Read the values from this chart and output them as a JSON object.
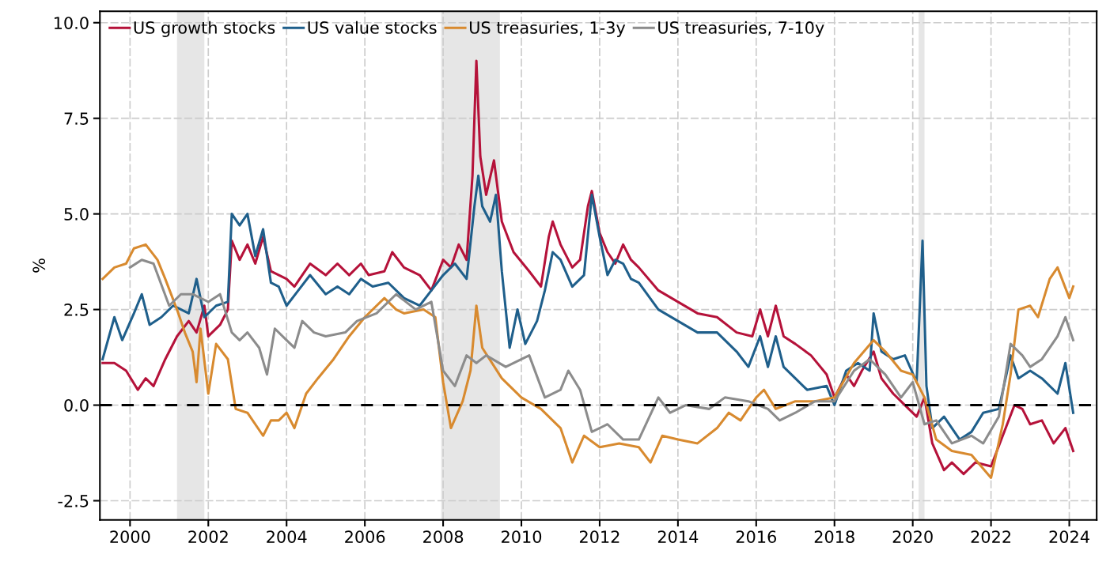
{
  "chart_data": {
    "type": "line",
    "ylabel": "%",
    "xlim": [
      1999.23,
      2024.7
    ],
    "ylim": [
      -3.0,
      10.3
    ],
    "xticks": [
      2000,
      2002,
      2004,
      2006,
      2008,
      2010,
      2012,
      2014,
      2016,
      2018,
      2020,
      2022,
      2024
    ],
    "yticks": [
      {
        "value": -2.5,
        "label": "-2.5"
      },
      {
        "value": 0,
        "label": "0.0"
      },
      {
        "value": 2.5,
        "label": "2.5"
      },
      {
        "value": 5,
        "label": "5.0"
      },
      {
        "value": 7.5,
        "label": "7.5"
      },
      {
        "value": 10,
        "label": "10.0"
      }
    ],
    "grid": true,
    "legend": "top left",
    "line_style": "solid",
    "marker": "none",
    "bands": [
      {
        "axis": "x",
        "from": 2001.2,
        "to": 2001.9,
        "color": "#e6e6e6"
      },
      {
        "axis": "x",
        "from": 2007.95,
        "to": 2009.45,
        "color": "#e6e6e6"
      },
      {
        "axis": "x",
        "from": 2020.15,
        "to": 2020.3,
        "color": "#e6e6e6"
      }
    ],
    "ref_lines": [
      {
        "axis": "y",
        "value": 0,
        "color": "#000000",
        "line_style": "dashed"
      }
    ],
    "series": [
      {
        "name": "US growth stocks",
        "color": "#b5123a",
        "x": [
          1999.3,
          1999.6,
          1999.9,
          2000.2,
          2000.4,
          2000.6,
          2000.9,
          2001.2,
          2001.5,
          2001.7,
          2001.9,
          2002.0,
          2002.3,
          2002.5,
          2002.6,
          2002.8,
          2003.0,
          2003.2,
          2003.4,
          2003.6,
          2004.0,
          2004.2,
          2004.6,
          2005.0,
          2005.3,
          2005.6,
          2005.9,
          2006.1,
          2006.5,
          2006.7,
          2007.0,
          2007.4,
          2007.7,
          2008.0,
          2008.2,
          2008.4,
          2008.6,
          2008.75,
          2008.85,
          2008.95,
          2009.1,
          2009.3,
          2009.5,
          2009.8,
          2010.2,
          2010.5,
          2010.7,
          2010.8,
          2011.0,
          2011.3,
          2011.5,
          2011.7,
          2011.8,
          2012.0,
          2012.2,
          2012.4,
          2012.6,
          2012.8,
          2013.0,
          2013.5,
          2014.0,
          2014.5,
          2015.0,
          2015.5,
          2015.9,
          2016.1,
          2016.3,
          2016.5,
          2016.7,
          2017.0,
          2017.4,
          2017.8,
          2018.0,
          2018.3,
          2018.5,
          2018.7,
          2019.0,
          2019.2,
          2019.5,
          2019.8,
          2020.1,
          2020.3,
          2020.5,
          2020.8,
          2021.0,
          2021.3,
          2021.6,
          2022.0,
          2022.3,
          2022.6,
          2022.8,
          2023.0,
          2023.3,
          2023.6,
          2023.9,
          2024.1
        ],
        "values": [
          1.1,
          1.1,
          0.9,
          0.4,
          0.7,
          0.5,
          1.2,
          1.8,
          2.2,
          1.9,
          2.6,
          1.8,
          2.1,
          2.5,
          4.3,
          3.8,
          4.2,
          3.7,
          4.4,
          3.5,
          3.3,
          3.1,
          3.7,
          3.4,
          3.7,
          3.4,
          3.7,
          3.4,
          3.5,
          4.0,
          3.6,
          3.4,
          3.0,
          3.8,
          3.6,
          4.2,
          3.8,
          6.0,
          9.0,
          6.5,
          5.5,
          6.4,
          4.8,
          4.0,
          3.5,
          3.1,
          4.4,
          4.8,
          4.2,
          3.6,
          3.8,
          5.2,
          5.6,
          4.5,
          4.0,
          3.7,
          4.2,
          3.8,
          3.6,
          3.0,
          2.7,
          2.4,
          2.3,
          1.9,
          1.8,
          2.5,
          1.8,
          2.6,
          1.8,
          1.6,
          1.3,
          0.8,
          0.2,
          0.8,
          0.5,
          0.9,
          1.4,
          0.7,
          0.3,
          0.0,
          -0.3,
          0.2,
          -1.0,
          -1.7,
          -1.5,
          -1.8,
          -1.5,
          -1.6,
          -0.8,
          0.0,
          -0.1,
          -0.5,
          -0.4,
          -1.0,
          -0.6,
          -1.2
        ]
      },
      {
        "name": "US value stocks",
        "color": "#1f5f8b",
        "x": [
          1999.3,
          1999.6,
          1999.8,
          2000.1,
          2000.3,
          2000.5,
          2000.8,
          2001.1,
          2001.5,
          2001.7,
          2001.9,
          2002.2,
          2002.5,
          2002.6,
          2002.8,
          2003.0,
          2003.2,
          2003.4,
          2003.6,
          2003.8,
          2004.0,
          2004.3,
          2004.6,
          2005.0,
          2005.3,
          2005.6,
          2005.9,
          2006.2,
          2006.6,
          2007.0,
          2007.4,
          2007.7,
          2008.0,
          2008.3,
          2008.6,
          2008.8,
          2008.9,
          2009.0,
          2009.2,
          2009.35,
          2009.5,
          2009.7,
          2009.9,
          2010.1,
          2010.4,
          2010.6,
          2010.8,
          2011.0,
          2011.3,
          2011.6,
          2011.8,
          2012.0,
          2012.2,
          2012.4,
          2012.6,
          2012.8,
          2013.0,
          2013.5,
          2014.0,
          2014.5,
          2015.0,
          2015.5,
          2015.8,
          2016.1,
          2016.3,
          2016.5,
          2016.7,
          2017.0,
          2017.3,
          2017.8,
          2018.0,
          2018.3,
          2018.6,
          2018.9,
          2019.0,
          2019.2,
          2019.5,
          2019.8,
          2020.1,
          2020.25,
          2020.35,
          2020.5,
          2020.8,
          2021.2,
          2021.5,
          2021.8,
          2022.2,
          2022.5,
          2022.7,
          2023.0,
          2023.3,
          2023.7,
          2023.9,
          2024.1
        ],
        "values": [
          1.2,
          2.3,
          1.7,
          2.4,
          2.9,
          2.1,
          2.3,
          2.6,
          2.4,
          3.3,
          2.3,
          2.6,
          2.7,
          5.0,
          4.7,
          5.0,
          3.9,
          4.6,
          3.2,
          3.1,
          2.6,
          3.0,
          3.4,
          2.9,
          3.1,
          2.9,
          3.3,
          3.1,
          3.2,
          2.8,
          2.6,
          3.0,
          3.4,
          3.7,
          3.3,
          5.2,
          6.0,
          5.2,
          4.8,
          5.5,
          3.5,
          1.5,
          2.5,
          1.6,
          2.2,
          3.0,
          4.0,
          3.8,
          3.1,
          3.4,
          5.5,
          4.4,
          3.4,
          3.8,
          3.7,
          3.3,
          3.2,
          2.5,
          2.2,
          1.9,
          1.9,
          1.4,
          1.0,
          1.8,
          1.0,
          1.8,
          1.0,
          0.7,
          0.4,
          0.5,
          0.0,
          0.9,
          1.1,
          0.9,
          2.4,
          1.4,
          1.2,
          1.3,
          0.6,
          4.3,
          0.5,
          -0.6,
          -0.3,
          -0.9,
          -0.7,
          -0.2,
          -0.1,
          1.3,
          0.7,
          0.9,
          0.7,
          0.3,
          1.1,
          -0.2
        ]
      },
      {
        "name": "US treasuries, 1-3y",
        "color": "#d88a2f",
        "x": [
          1999.3,
          1999.6,
          1999.9,
          2000.1,
          2000.4,
          2000.7,
          2000.9,
          2001.2,
          2001.4,
          2001.6,
          2001.7,
          2001.8,
          2002.0,
          2002.2,
          2002.5,
          2002.7,
          2003.0,
          2003.4,
          2003.6,
          2003.8,
          2004.0,
          2004.2,
          2004.5,
          2004.8,
          2005.2,
          2005.6,
          2006.0,
          2006.5,
          2006.8,
          2007.0,
          2007.5,
          2007.8,
          2008.0,
          2008.2,
          2008.5,
          2008.7,
          2008.85,
          2009.0,
          2009.5,
          2010.0,
          2010.5,
          2011.0,
          2011.3,
          2011.6,
          2012.0,
          2012.5,
          2013.0,
          2013.3,
          2013.6,
          2014.0,
          2014.5,
          2015.0,
          2015.3,
          2015.6,
          2016.0,
          2016.2,
          2016.5,
          2017.0,
          2017.5,
          2018.0,
          2018.5,
          2019.0,
          2019.3,
          2019.7,
          2020.0,
          2020.3,
          2020.6,
          2021.0,
          2021.5,
          2022.0,
          2022.3,
          2022.5,
          2022.7,
          2023.0,
          2023.2,
          2023.5,
          2023.7,
          2024.0,
          2024.1
        ],
        "values": [
          3.3,
          3.6,
          3.7,
          4.1,
          4.2,
          3.8,
          3.3,
          2.5,
          1.9,
          1.4,
          0.6,
          2.0,
          0.3,
          1.6,
          1.2,
          -0.1,
          -0.2,
          -0.8,
          -0.4,
          -0.4,
          -0.2,
          -0.6,
          0.3,
          0.7,
          1.2,
          1.8,
          2.3,
          2.8,
          2.5,
          2.4,
          2.5,
          2.3,
          0.6,
          -0.6,
          0.1,
          0.9,
          2.6,
          1.5,
          0.7,
          0.2,
          -0.1,
          -0.6,
          -1.5,
          -0.8,
          -1.1,
          -1.0,
          -1.1,
          -1.5,
          -0.8,
          -0.9,
          -1.0,
          -0.6,
          -0.2,
          -0.4,
          0.2,
          0.4,
          -0.1,
          0.1,
          0.1,
          0.2,
          1.1,
          1.7,
          1.4,
          0.9,
          0.8,
          0.2,
          -0.9,
          -1.2,
          -1.3,
          -1.9,
          -0.5,
          0.8,
          2.5,
          2.6,
          2.3,
          3.3,
          3.6,
          2.8,
          3.1
        ]
      },
      {
        "name": "US treasuries, 7-10y",
        "color": "#8c8c8c",
        "x": [
          2000.0,
          2000.3,
          2000.6,
          2001.0,
          2001.3,
          2001.6,
          2002.0,
          2002.3,
          2002.6,
          2002.8,
          2003.0,
          2003.3,
          2003.5,
          2003.7,
          2004.0,
          2004.2,
          2004.4,
          2004.7,
          2005.0,
          2005.5,
          2005.8,
          2006.3,
          2006.8,
          2007.3,
          2007.7,
          2008.0,
          2008.3,
          2008.6,
          2008.85,
          2009.1,
          2009.6,
          2010.2,
          2010.6,
          2011.0,
          2011.2,
          2011.5,
          2011.8,
          2012.2,
          2012.6,
          2013.0,
          2013.5,
          2013.8,
          2014.2,
          2014.8,
          2015.2,
          2015.8,
          2016.3,
          2016.6,
          2017.0,
          2017.5,
          2018.0,
          2018.5,
          2018.9,
          2019.3,
          2019.7,
          2020.0,
          2020.3,
          2020.6,
          2021.0,
          2021.5,
          2021.8,
          2022.2,
          2022.5,
          2022.8,
          2023.0,
          2023.3,
          2023.7,
          2023.9,
          2024.1
        ],
        "values": [
          3.6,
          3.8,
          3.7,
          2.6,
          2.9,
          2.9,
          2.7,
          2.9,
          1.9,
          1.7,
          1.9,
          1.5,
          0.8,
          2.0,
          1.7,
          1.5,
          2.2,
          1.9,
          1.8,
          1.9,
          2.2,
          2.4,
          2.9,
          2.5,
          2.7,
          0.9,
          0.5,
          1.3,
          1.1,
          1.3,
          1.0,
          1.3,
          0.2,
          0.4,
          0.9,
          0.4,
          -0.7,
          -0.5,
          -0.9,
          -0.9,
          0.2,
          -0.2,
          0.0,
          -0.1,
          0.2,
          0.1,
          -0.1,
          -0.4,
          -0.2,
          0.1,
          0.1,
          0.9,
          1.2,
          0.8,
          0.2,
          0.6,
          -0.5,
          -0.4,
          -1.0,
          -0.8,
          -1.0,
          -0.3,
          1.6,
          1.3,
          1.0,
          1.2,
          1.8,
          2.3,
          1.7
        ]
      }
    ]
  }
}
